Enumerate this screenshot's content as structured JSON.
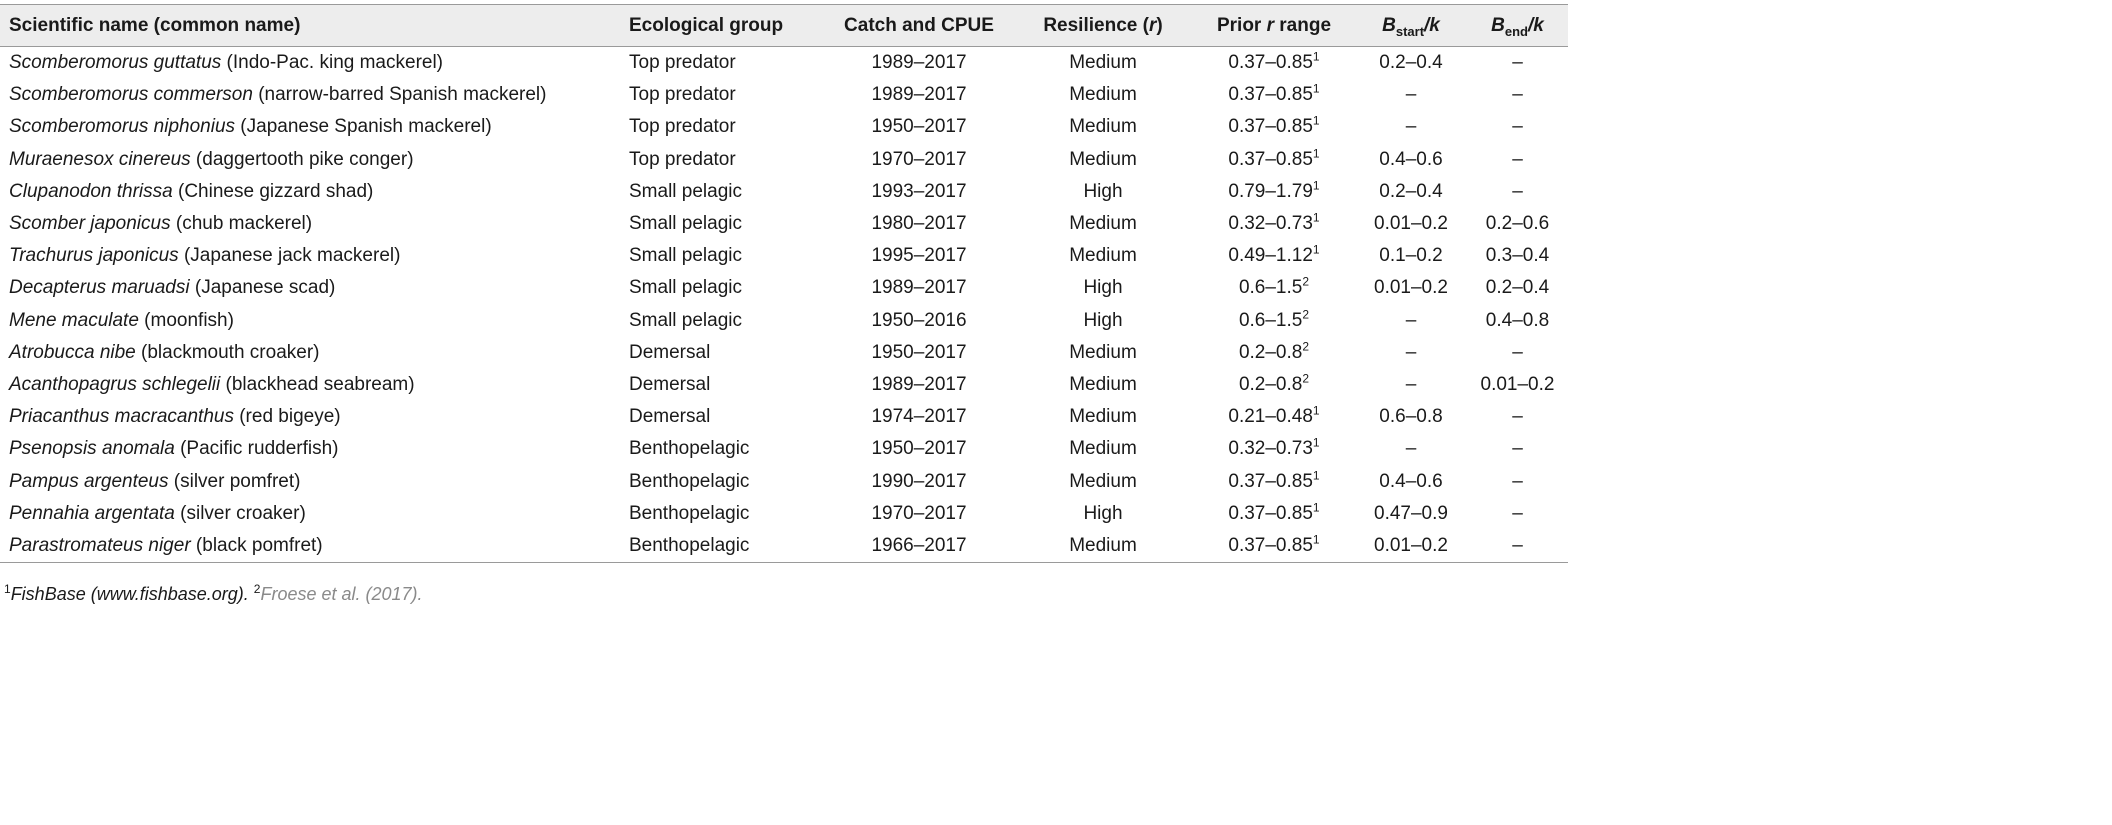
{
  "table": {
    "headers": {
      "name": "Scientific name (common name)",
      "eco": "Ecological group",
      "catch": "Catch and CPUE",
      "res_main": "Resilience (",
      "res_var": "r",
      "res_close": ")",
      "prior_pre": "Prior ",
      "prior_var": "r",
      "prior_post": " range",
      "bstart_b": "B",
      "bstart_sub": "start",
      "bstart_k": "/k",
      "bend_b": "B",
      "bend_sub": "end",
      "bend_k": "/k"
    },
    "rows": [
      {
        "sci": "Scomberomorus guttatus",
        "common": " (Indo-Pac. king mackerel)",
        "eco": "Top predator",
        "catch": "1989–2017",
        "res": "Medium",
        "prior": "0.37–0.85",
        "sup": "1",
        "bstart": "0.2–0.4",
        "bend": "–"
      },
      {
        "sci": "Scomberomorus commerson",
        "common": " (narrow-barred Spanish mackerel)",
        "eco": "Top predator",
        "catch": "1989–2017",
        "res": "Medium",
        "prior": "0.37–0.85",
        "sup": "1",
        "bstart": "–",
        "bend": "–"
      },
      {
        "sci": "Scomberomorus niphonius",
        "common": " (Japanese Spanish mackerel)",
        "eco": "Top predator",
        "catch": "1950–2017",
        "res": "Medium",
        "prior": "0.37–0.85",
        "sup": "1",
        "bstart": "–",
        "bend": "–"
      },
      {
        "sci": "Muraenesox cinereus",
        "common": " (daggertooth pike conger)",
        "eco": "Top predator",
        "catch": "1970–2017",
        "res": "Medium",
        "prior": "0.37–0.85",
        "sup": "1",
        "bstart": "0.4–0.6",
        "bend": "–"
      },
      {
        "sci": "Clupanodon thrissa",
        "common": " (Chinese gizzard shad)",
        "eco": "Small pelagic",
        "catch": "1993–2017",
        "res": "High",
        "prior": "0.79–1.79",
        "sup": "1",
        "bstart": "0.2–0.4",
        "bend": "–"
      },
      {
        "sci": "Scomber japonicus",
        "common": " (chub mackerel)",
        "eco": "Small pelagic",
        "catch": "1980–2017",
        "res": "Medium",
        "prior": "0.32–0.73",
        "sup": "1",
        "bstart": "0.01–0.2",
        "bend": "0.2–0.6"
      },
      {
        "sci": "Trachurus japonicus",
        "common": " (Japanese jack mackerel)",
        "eco": "Small pelagic",
        "catch": "1995–2017",
        "res": "Medium",
        "prior": "0.49–1.12",
        "sup": "1",
        "bstart": "0.1–0.2",
        "bend": "0.3–0.4"
      },
      {
        "sci": "Decapterus maruadsi",
        "common": " (Japanese scad)",
        "eco": "Small pelagic",
        "catch": "1989–2017",
        "res": "High",
        "prior": "0.6–1.5",
        "sup": "2",
        "bstart": "0.01–0.2",
        "bend": "0.2–0.4"
      },
      {
        "sci": "Mene maculate",
        "common": " (moonfish)",
        "eco": "Small pelagic",
        "catch": "1950–2016",
        "res": "High",
        "prior": "0.6–1.5",
        "sup": "2",
        "bstart": "–",
        "bend": "0.4–0.8"
      },
      {
        "sci": "Atrobucca nibe",
        "common": " (blackmouth croaker)",
        "eco": "Demersal",
        "catch": "1950–2017",
        "res": "Medium",
        "prior": "0.2–0.8",
        "sup": "2",
        "bstart": "–",
        "bend": "–"
      },
      {
        "sci": "Acanthopagrus schlegelii",
        "common": " (blackhead seabream)",
        "eco": "Demersal",
        "catch": "1989–2017",
        "res": "Medium",
        "prior": "0.2–0.8",
        "sup": "2",
        "bstart": "–",
        "bend": "0.01–0.2"
      },
      {
        "sci": "Priacanthus macracanthus",
        "common": " (red bigeye)",
        "eco": "Demersal",
        "catch": "1974–2017",
        "res": "Medium",
        "prior": "0.21–0.48",
        "sup": "1",
        "bstart": "0.6–0.8",
        "bend": "–"
      },
      {
        "sci": "Psenopsis anomala",
        "common": " (Pacific rudderfish)",
        "eco": "Benthopelagic",
        "catch": "1950–2017",
        "res": "Medium",
        "prior": "0.32–0.73",
        "sup": "1",
        "bstart": "–",
        "bend": "–"
      },
      {
        "sci": "Pampus argenteus",
        "common": " (silver pomfret)",
        "eco": "Benthopelagic",
        "catch": "1990–2017",
        "res": "Medium",
        "prior": "0.37–0.85",
        "sup": "1",
        "bstart": "0.4–0.6",
        "bend": "–"
      },
      {
        "sci": "Pennahia argentata",
        "common": " (silver croaker)",
        "eco": "Benthopelagic",
        "catch": "1970–2017",
        "res": "High",
        "prior": "0.37–0.85",
        "sup": "1",
        "bstart": "0.47–0.9",
        "bend": "–"
      },
      {
        "sci": "Parastromateus niger",
        "common": " (black pomfret)",
        "eco": "Benthopelagic",
        "catch": "1966–2017",
        "res": "Medium",
        "prior": "0.37–0.85",
        "sup": "1",
        "bstart": "0.01–0.2",
        "bend": "–"
      }
    ]
  },
  "footnote": {
    "sup1": "1",
    "text1": "FishBase (www.fishbase.org). ",
    "sup2": "2",
    "text2": "Froese et al. (2017)."
  }
}
